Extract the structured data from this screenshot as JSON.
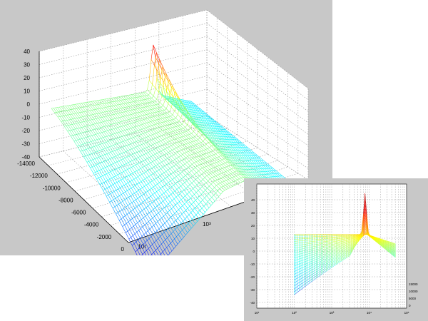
{
  "chart_data": [
    {
      "type": "3d-mesh",
      "title": "",
      "xlabel": "",
      "ylabel": "",
      "zlabel": "",
      "x_scale": "log",
      "x_ticks": [
        "10²",
        "10³"
      ],
      "y_ticks": [
        "-14000",
        "-12000",
        "-10000",
        "-8000",
        "-6000",
        "-4000",
        "-2000",
        "0"
      ],
      "z_ticks": [
        "40",
        "30",
        "20",
        "10",
        "0",
        "-10",
        "-20",
        "-30",
        "-40"
      ],
      "zlim": [
        -40,
        40
      ],
      "ylim": [
        -14000,
        0
      ],
      "grid": true,
      "colormap": "jet",
      "surface": {
        "x_range": [
          100,
          5000
        ],
        "resonance_x": 1000,
        "peak_z": 33,
        "plateau_z": 0,
        "lowfreq_min_z": -36,
        "highfreq_z": -12
      }
    },
    {
      "type": "3d-mesh",
      "title": "",
      "view": "side",
      "x_scale": "log",
      "x_ticks": [
        "10¹",
        "10²",
        "10³",
        "10⁴",
        "10⁵"
      ],
      "z_ticks": [
        "40",
        "30",
        "20",
        "10",
        "0",
        "-10",
        "-20",
        "-30",
        "-40"
      ],
      "y_ticks": [
        "15000",
        "10000",
        "5000",
        "0"
      ],
      "zlim": [
        -40,
        40
      ],
      "grid": true,
      "colormap": "jet",
      "surface": {
        "x_range": [
          100,
          5000
        ],
        "peak_z": 45,
        "plateau_z": 13,
        "lowfreq_min_z": -34,
        "highfreq_z": -5
      }
    }
  ],
  "colors": {
    "figure_background": "#c8c8c8",
    "axes_background": "#ffffff",
    "grid": "#9a9a9a"
  }
}
